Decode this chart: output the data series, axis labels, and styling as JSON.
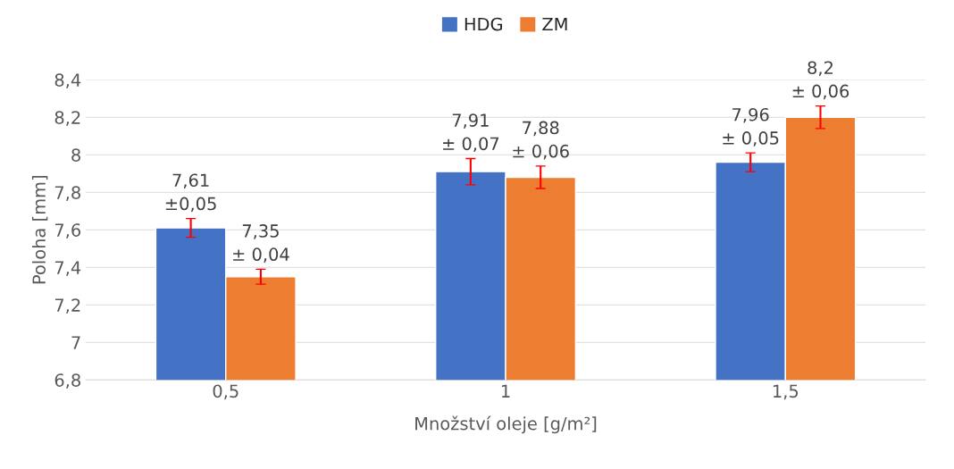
{
  "chart_data": {
    "type": "bar",
    "xlabel": "Množství oleje [g/m²]",
    "ylabel": "Poloha [mm]",
    "categories": [
      "0,5",
      "1",
      "1,5"
    ],
    "series": [
      {
        "name": "HDG",
        "color": "#4472c4",
        "values": [
          7.61,
          7.91,
          7.96
        ],
        "errors": [
          0.05,
          0.07,
          0.05
        ],
        "value_labels": [
          "7,61\n±0,05",
          "7,91\n± 0,07",
          "7,96\n± 0,05"
        ]
      },
      {
        "name": "ZM",
        "color": "#ed7d31",
        "values": [
          7.35,
          7.88,
          8.2
        ],
        "errors": [
          0.04,
          0.06,
          0.06
        ],
        "value_labels": [
          "7,35\n± 0,04",
          "7,88\n± 0,06",
          "8,2\n± 0,06"
        ]
      }
    ],
    "ylim": [
      6.8,
      8.4
    ],
    "yticks": [
      {
        "value": 6.8,
        "label": "6,8"
      },
      {
        "value": 7,
        "label": "7"
      },
      {
        "value": 7.2,
        "label": "7,2"
      },
      {
        "value": 7.4,
        "label": "7,4"
      },
      {
        "value": 7.6,
        "label": "7,6"
      },
      {
        "value": 7.8,
        "label": "7,8"
      },
      {
        "value": 8,
        "label": "8"
      },
      {
        "value": 8.2,
        "label": "8,2"
      },
      {
        "value": 8.4,
        "label": "8,4"
      }
    ],
    "grid": "y",
    "legend": "top"
  }
}
